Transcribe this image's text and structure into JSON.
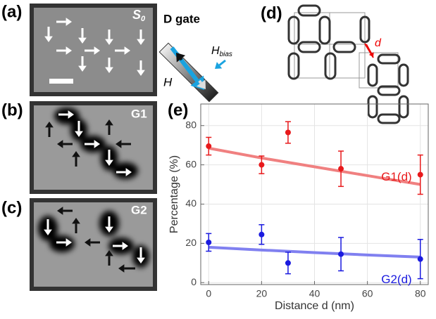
{
  "panels": {
    "a": "(a)",
    "b": "(b)",
    "c": "(c)",
    "d": "(d)",
    "e": "(e)"
  },
  "panel_a": {
    "state": {
      "main": "S",
      "sub": "0"
    }
  },
  "gate": {
    "title": "D gate",
    "field": "H",
    "bias": {
      "main": "H",
      "sub": "bias"
    }
  },
  "panel_b": {
    "label": "G1"
  },
  "panel_c": {
    "label": "G2"
  },
  "panel_d": {
    "distance": "d"
  },
  "chart_data": {
    "type": "scatter",
    "x_label": "Distance d (nm)",
    "y_label": "Percentage (%)",
    "xlim": [
      -3,
      83
    ],
    "ylim": [
      -1,
      91
    ],
    "xticks": [
      0,
      20,
      40,
      60,
      80
    ],
    "yticks": [
      0,
      20,
      40,
      60,
      80
    ],
    "grid": true,
    "x": [
      0,
      20,
      30,
      50,
      80
    ],
    "series": [
      {
        "name": "G1(d)",
        "color": "#e8191b",
        "values": [
          69.5,
          60,
          76.5,
          58,
          55
        ],
        "errors": [
          4.5,
          4.5,
          5.5,
          9,
          10
        ]
      },
      {
        "name": "G2(d)",
        "color": "#1a1adf",
        "values": [
          20.5,
          24.5,
          10,
          14.5,
          12
        ],
        "errors": [
          4.5,
          5,
          5.5,
          8.5,
          10
        ]
      }
    ],
    "fits": [
      {
        "color": "#f08080",
        "x": [
          0,
          20,
          40,
          60,
          80
        ],
        "values": [
          68.5,
          63.5,
          59,
          54.5,
          50
        ]
      },
      {
        "color": "#8080f0",
        "x": [
          0,
          20,
          40,
          60,
          80
        ],
        "values": [
          18,
          16.6,
          15.3,
          14.1,
          13
        ]
      }
    ]
  }
}
